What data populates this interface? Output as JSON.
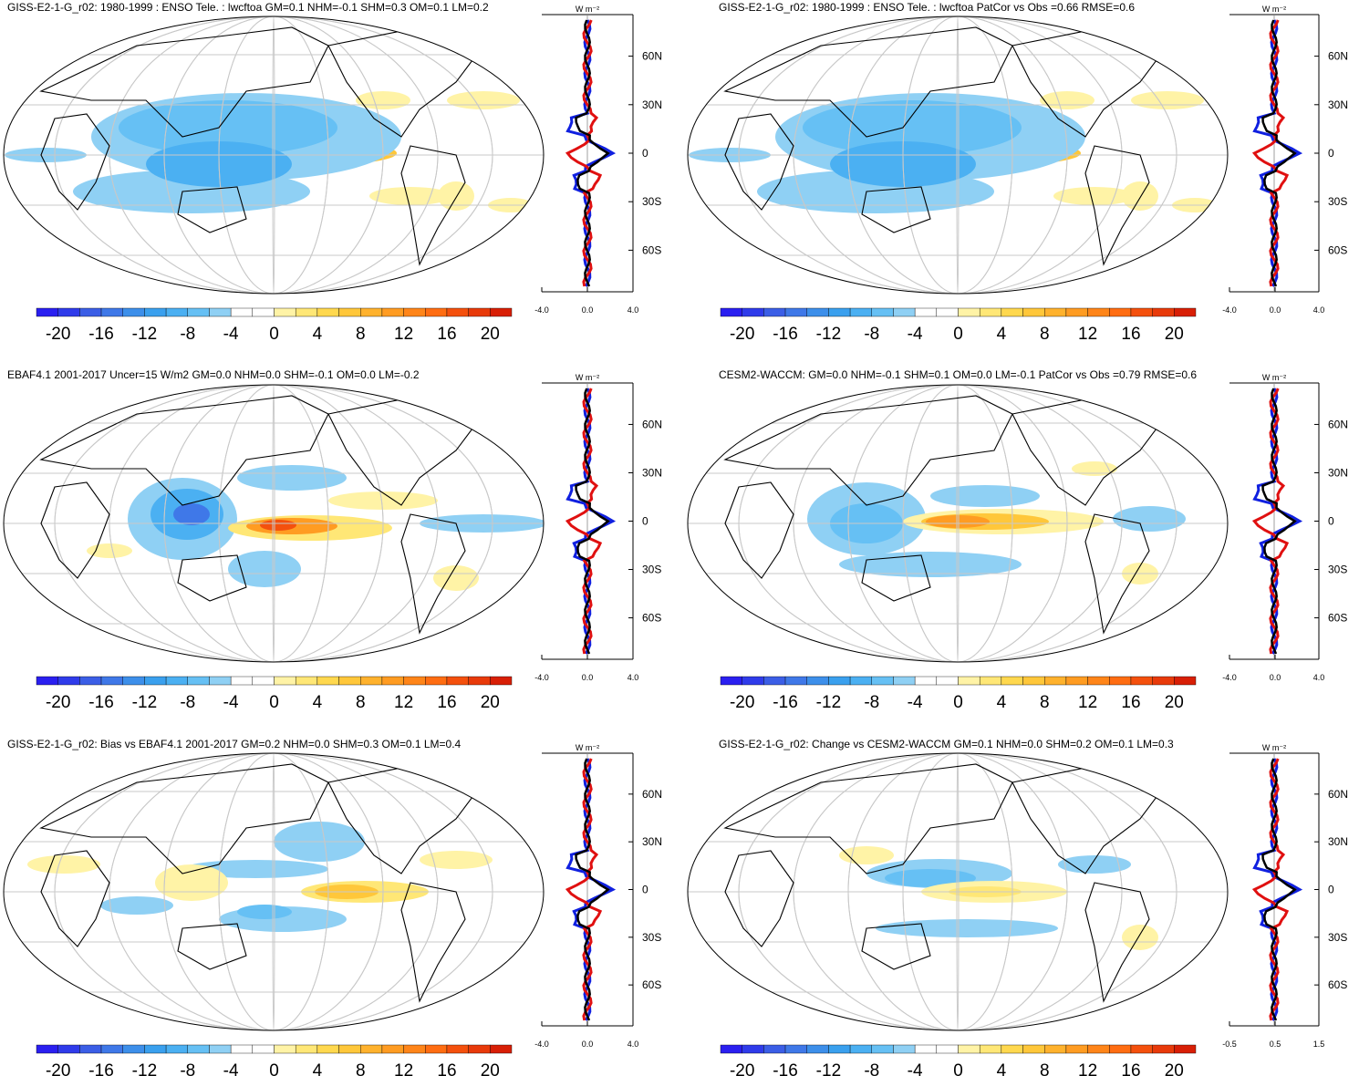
{
  "panels": [
    {
      "title": "GISS-E2-1-G_r02: 1980-1999 : ENSO Tele. : lwcftoa GM=0.1 NHM=-0.1 SHM=0.3 OM=0.1 LM=0.2",
      "profile_ticks": [
        "-4.0",
        "0.0",
        "4.0"
      ]
    },
    {
      "title": "GISS-E2-1-G_r02: 1980-1999 : ENSO Tele. : lwcftoa PatCor vs Obs =0.66 RMSE=0.6",
      "profile_ticks": [
        "-4.0",
        "0.0",
        "4.0"
      ]
    },
    {
      "title": "EBAF4.1 2001-2017 Uncer=15 W/m2 GM=0.0 NHM=0.0 SHM=-0.1 OM=0.0 LM=-0.2",
      "profile_ticks": [
        "-4.0",
        "0.0",
        "4.0"
      ]
    },
    {
      "title": "CESM2-WACCM: GM=0.0 NHM=-0.1 SHM=0.1 OM=0.0 LM=-0.1 PatCor vs Obs =0.79 RMSE=0.6",
      "profile_ticks": [
        "-4.0",
        "0.0",
        "4.0"
      ]
    },
    {
      "title": "GISS-E2-1-G_r02: Bias vs EBAF4.1 2001-2017 GM=0.2 NHM=0.0 SHM=0.3 OM=0.1 LM=0.4",
      "profile_ticks": [
        "-4.0",
        "0.0",
        "4.0"
      ]
    },
    {
      "title": "GISS-E2-1-G_r02: Change vs CESM2-WACCM GM=0.1 NHM=0.0 SHM=0.2 OM=0.1 LM=0.3",
      "profile_ticks": [
        "-0.5",
        "0.5",
        "1.5"
      ]
    }
  ],
  "profile_units": "W m⁻²",
  "lat_labels": [
    "60N",
    "30N",
    "0",
    "30S",
    "60S"
  ],
  "colorbar": {
    "labels": [
      "-20",
      "-16",
      "-12",
      "-8",
      "-4",
      "0",
      "4",
      "8",
      "12",
      "16",
      "20"
    ],
    "colors": [
      "#2a1ff0",
      "#2f3bea",
      "#3b5ee6",
      "#3f78e8",
      "#3d8fea",
      "#3aa0ee",
      "#4bb0f2",
      "#66c0f4",
      "#8fd0f4",
      "#ffffff",
      "#ffffff",
      "#fff3a6",
      "#ffe776",
      "#ffd84e",
      "#ffc73a",
      "#ffb22d",
      "#ff9c22",
      "#ff8519",
      "#ff6d12",
      "#f4500d",
      "#e83a0a",
      "#d81f06"
    ]
  },
  "legend_colors": {
    "model": "#e01010",
    "obs": "#1020e0",
    "ratio": "#000000"
  }
}
